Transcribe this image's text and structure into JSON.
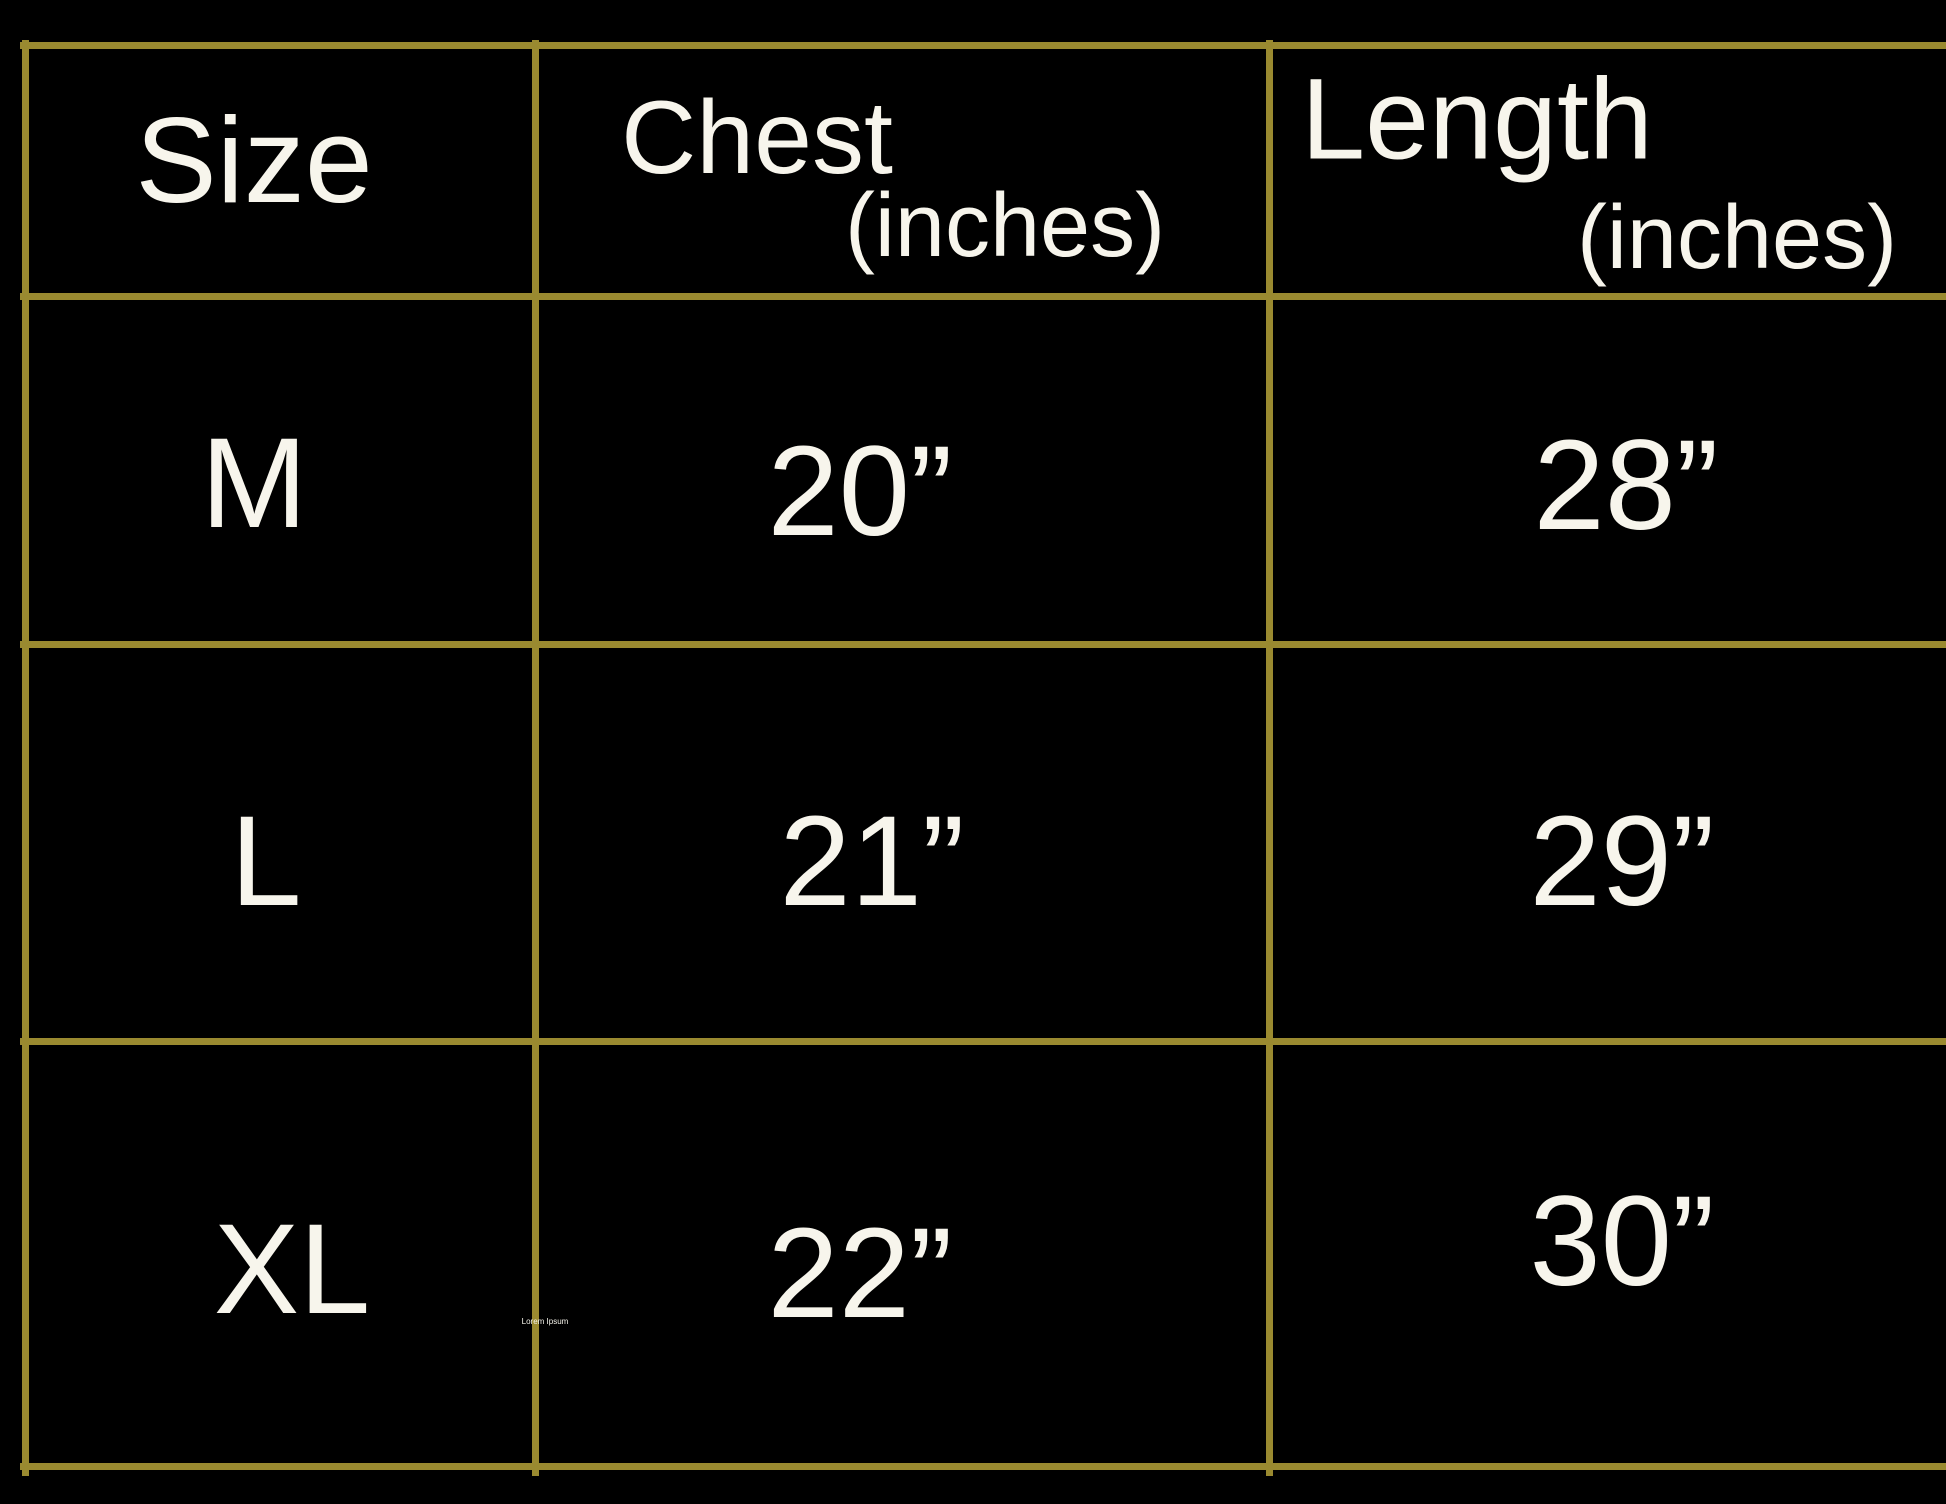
{
  "table": {
    "headers": {
      "size": "Size",
      "chest": "Chest",
      "chest_unit": "(inches)",
      "length": "Length",
      "length_unit": "(inches)"
    },
    "rows": [
      {
        "size": "M",
        "chest": "20”",
        "length": "28”"
      },
      {
        "size": "L",
        "chest": "21”",
        "length": "29”"
      },
      {
        "size": "XL",
        "chest": "22”",
        "length": "30”"
      }
    ],
    "line_color": "#9a8a30"
  },
  "watermark": "Lorem Ipsum"
}
